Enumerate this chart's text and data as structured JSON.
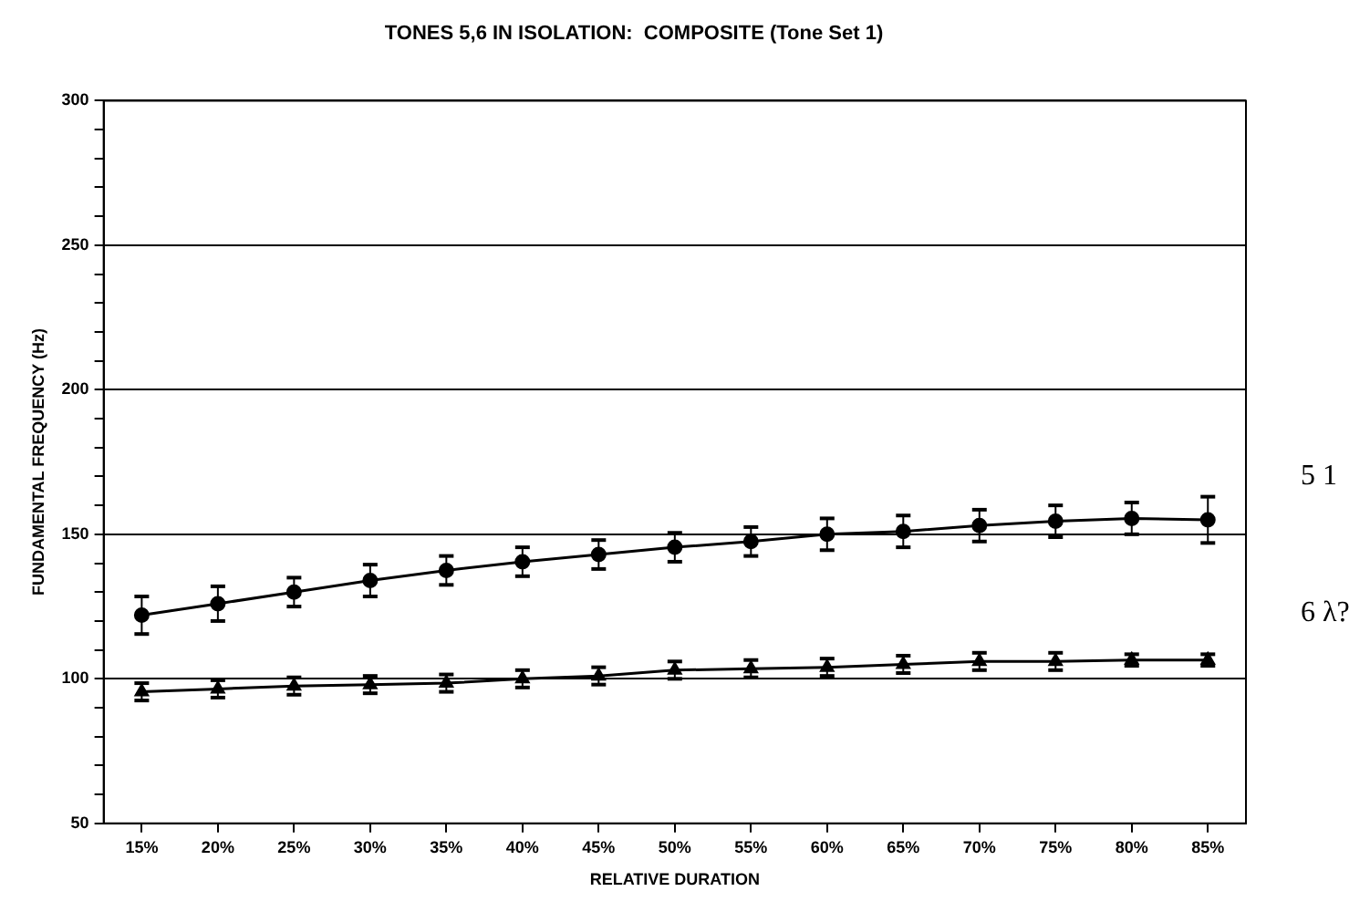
{
  "chart_data": {
    "type": "line",
    "title": "TONES 5,6 IN ISOLATION:  COMPOSITE (Tone Set 1)",
    "xlabel": "RELATIVE DURATION",
    "ylabel": "FUNDAMENTAL FREQUENCY (Hz)",
    "categories": [
      "15%",
      "20%",
      "25%",
      "30%",
      "35%",
      "40%",
      "45%",
      "50%",
      "55%",
      "60%",
      "65%",
      "70%",
      "75%",
      "80%",
      "85%"
    ],
    "series": [
      {
        "color": "#000000",
        "marker": "circle",
        "values": [
          122,
          126,
          130,
          134,
          137.5,
          140.5,
          143,
          145.5,
          147.5,
          150,
          151,
          153,
          154.5,
          155.5,
          155
        ],
        "errors": [
          6.5,
          6,
          5,
          5.5,
          5,
          5,
          5,
          5,
          5,
          5.5,
          5.5,
          5.5,
          5.5,
          5.5,
          8
        ]
      },
      {
        "color": "#000000",
        "marker": "triangle",
        "values": [
          95.5,
          96.5,
          97.5,
          98,
          98.5,
          100,
          101,
          103,
          103.5,
          104,
          105,
          106,
          106,
          106.5,
          106.5
        ],
        "errors": [
          3,
          3,
          3,
          3,
          3,
          3,
          3,
          3,
          3,
          3,
          3,
          3,
          3,
          2,
          2
        ]
      }
    ],
    "ylim": [
      50,
      300
    ],
    "yticks": [
      50,
      {
        "value": 60,
        "label": null
      },
      {
        "value": 70,
        "label": null
      },
      {
        "value": 80,
        "label": null
      },
      {
        "value": 90,
        "label": null
      },
      100,
      {
        "value": 110,
        "label": null
      },
      {
        "value": 120,
        "label": null
      },
      {
        "value": 130,
        "label": null
      },
      {
        "value": 140,
        "label": null
      },
      150,
      {
        "value": 160,
        "label": null
      },
      {
        "value": 170,
        "label": null
      },
      {
        "value": 180,
        "label": null
      },
      {
        "value": 190,
        "label": null
      },
      200,
      {
        "value": 210,
        "label": null
      },
      {
        "value": 220,
        "label": null
      },
      {
        "value": 230,
        "label": null
      },
      {
        "value": 240,
        "label": null
      },
      250,
      {
        "value": 260,
        "label": null
      },
      {
        "value": 270,
        "label": null
      },
      {
        "value": 280,
        "label": null
      },
      {
        "value": 290,
        "label": null
      },
      300
    ],
    "grid": "y",
    "legend": false,
    "line_style": "solid",
    "annotations": [
      "5 1",
      "6 λ?"
    ]
  }
}
